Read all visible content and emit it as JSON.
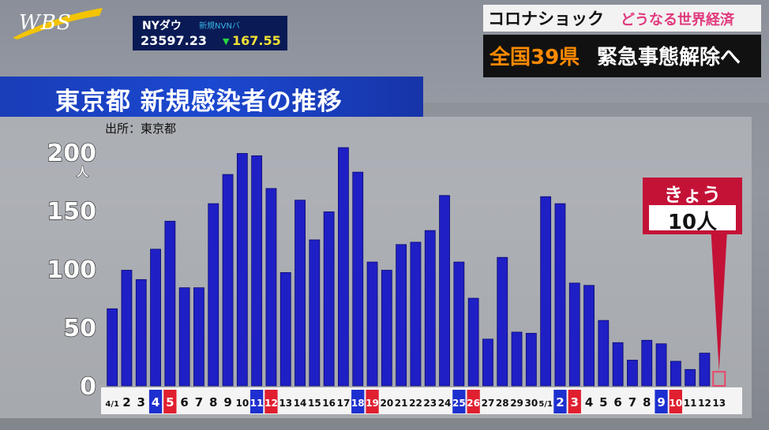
{
  "program": {
    "logo": "WBS"
  },
  "ticker": {
    "name": "NYダウ",
    "garbled": "新規NVNバ",
    "value": "23597.23",
    "direction": "down",
    "change": "167.55",
    "change_color": "#27d641",
    "value_color": "#f2e234"
  },
  "headline": {
    "topic": "コロナショック",
    "tagline": "どうなる世界経済",
    "highlight": "全国39県",
    "rest": "緊急事態解除へ"
  },
  "chart_data": {
    "type": "bar",
    "title": "東京都 新規感染者の推移",
    "source": "出所：東京都",
    "ylabel": "人",
    "ylim": [
      0,
      200
    ],
    "yticks": [
      0,
      50,
      100,
      150,
      200
    ],
    "categories": [
      "4/1",
      "2",
      "3",
      "4",
      "5",
      "6",
      "7",
      "8",
      "9",
      "10",
      "11",
      "12",
      "13",
      "14",
      "15",
      "16",
      "17",
      "18",
      "19",
      "20",
      "21",
      "22",
      "23",
      "24",
      "25",
      "26",
      "27",
      "28",
      "29",
      "30",
      "5/1",
      "2",
      "3",
      "4",
      "5",
      "6",
      "7",
      "8",
      "9",
      "10",
      "11",
      "12",
      "13"
    ],
    "values": [
      66,
      99,
      91,
      117,
      141,
      84,
      84,
      156,
      181,
      199,
      197,
      169,
      97,
      159,
      125,
      149,
      204,
      183,
      106,
      99,
      121,
      123,
      133,
      163,
      106,
      75,
      40,
      110,
      46,
      45,
      162,
      156,
      88,
      86,
      56,
      37,
      22,
      39,
      36,
      21,
      14,
      28,
      10
    ],
    "label_colors": {
      "blue": [
        3,
        10,
        17,
        24,
        31,
        38
      ],
      "red": [
        4,
        11,
        18,
        25,
        32,
        39
      ]
    },
    "colors": {
      "bar": "#1f1fc6",
      "bar_today": "#e8486a",
      "label_blue": "#1d2fcf",
      "label_red": "#e01f2f"
    },
    "today": {
      "label": "きょう",
      "value_text": "10人",
      "index": 42
    }
  }
}
